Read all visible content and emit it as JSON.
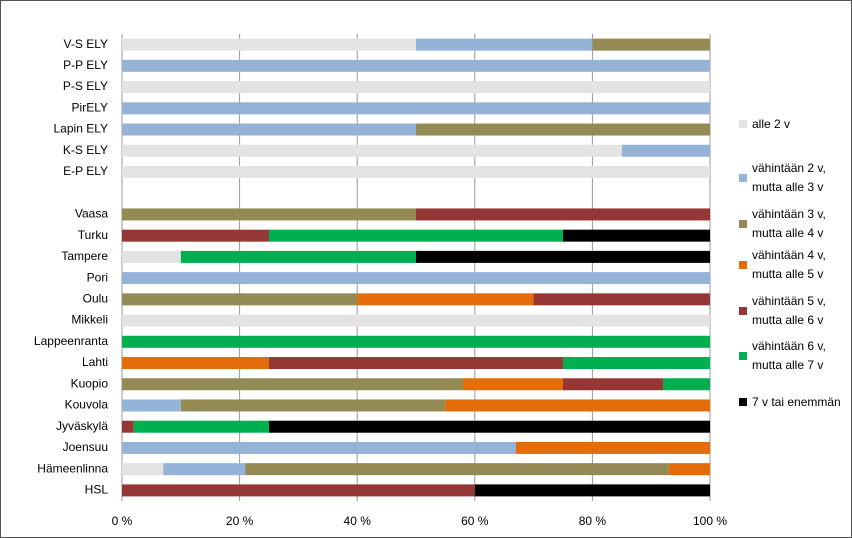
{
  "chart_data": {
    "type": "stacked_bar_horizontal",
    "categories": [
      "V-S ELY",
      "P-P ELY",
      "P-S ELY",
      "PirELY",
      "Lapin ELY",
      "K-S ELY",
      "E-P ELY",
      null,
      "Vaasa",
      "Turku",
      "Tampere",
      "Pori",
      "Oulu",
      "Mikkeli",
      "Lappeenranta",
      "Lahti",
      "Kuopio",
      "Kouvola",
      "Jyväskylä",
      "Joensuu",
      "Hämeenlinna",
      "HSL"
    ],
    "series": [
      {
        "name": "alle 2 v",
        "color": "#e3e3e3",
        "values": [
          50,
          0,
          100,
          0,
          0,
          85,
          100,
          null,
          0,
          0,
          10,
          0,
          0,
          100,
          0,
          0,
          0,
          0,
          0,
          0,
          7,
          0
        ]
      },
      {
        "name": "vähintään 2 v, mutta alle 3 v",
        "color": "#95b3d7",
        "values": [
          30,
          100,
          0,
          100,
          50,
          15,
          0,
          null,
          0,
          0,
          0,
          100,
          0,
          0,
          0,
          0,
          0,
          10,
          0,
          67,
          14,
          0
        ]
      },
      {
        "name": "vähintään 3 v, mutta alle 4 v",
        "color": "#948a54",
        "values": [
          20,
          0,
          0,
          0,
          50,
          0,
          0,
          null,
          50,
          0,
          0,
          0,
          40,
          0,
          0,
          0,
          58,
          45,
          0,
          0,
          72,
          0
        ]
      },
      {
        "name": "vähintään 4 v, mutta alle 5 v",
        "color": "#e46c0a",
        "values": [
          0,
          0,
          0,
          0,
          0,
          0,
          0,
          null,
          0,
          0,
          0,
          0,
          30,
          0,
          0,
          25,
          17,
          45,
          0,
          33,
          7,
          0
        ]
      },
      {
        "name": "vähintään 5 v, mutta alle 6 v",
        "color": "#953735",
        "values": [
          0,
          0,
          0,
          0,
          0,
          0,
          0,
          null,
          50,
          25,
          0,
          0,
          30,
          0,
          0,
          50,
          17,
          0,
          2,
          0,
          0,
          60
        ]
      },
      {
        "name": "vähintään 6 v, mutta alle 7 v",
        "color": "#00b050",
        "values": [
          0,
          0,
          0,
          0,
          0,
          0,
          0,
          null,
          0,
          50,
          40,
          0,
          0,
          0,
          100,
          25,
          8,
          0,
          23,
          0,
          0,
          0
        ]
      },
      {
        "name": "7 v tai enemmän",
        "color": "#000000",
        "values": [
          0,
          0,
          0,
          0,
          0,
          0,
          0,
          null,
          0,
          25,
          50,
          0,
          0,
          0,
          0,
          0,
          0,
          0,
          75,
          0,
          0,
          40
        ]
      }
    ],
    "xlim": [
      0,
      100
    ],
    "xticks": [
      {
        "value": 0,
        "label": "0 %"
      },
      {
        "value": 20,
        "label": "20 %"
      },
      {
        "value": 40,
        "label": "40 %"
      },
      {
        "value": 60,
        "label": "60 %"
      },
      {
        "value": 80,
        "label": "80 %"
      },
      {
        "value": 100,
        "label": "100 %"
      }
    ],
    "grid": true
  }
}
